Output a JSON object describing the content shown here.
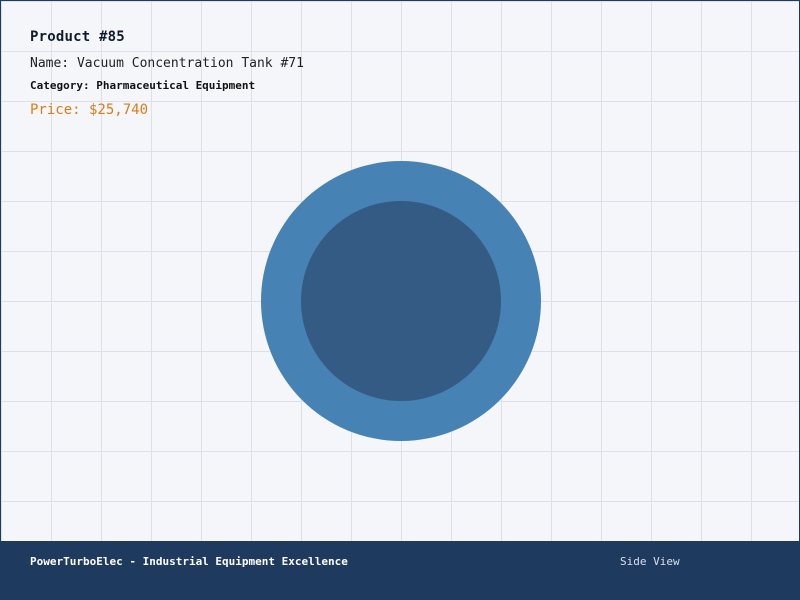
{
  "product": {
    "title": "Product #85",
    "name": "Name: Vacuum Concentration Tank #71",
    "category": "Category: Pharmaceutical Equipment",
    "price": "Price: $25,740"
  },
  "illustration": {
    "outer_color": "#4682b4",
    "inner_color": "#335b83",
    "icon": "tank-top-view-icon"
  },
  "footer": {
    "brand": "PowerTurboElec - Industrial Equipment Excellence",
    "view_label": "Side View",
    "background": "#1e3a5f"
  },
  "colors": {
    "price": "#e07b14",
    "border": "#1e3a5f",
    "grid": "#dde0e8",
    "background": "#f5f6fa"
  }
}
